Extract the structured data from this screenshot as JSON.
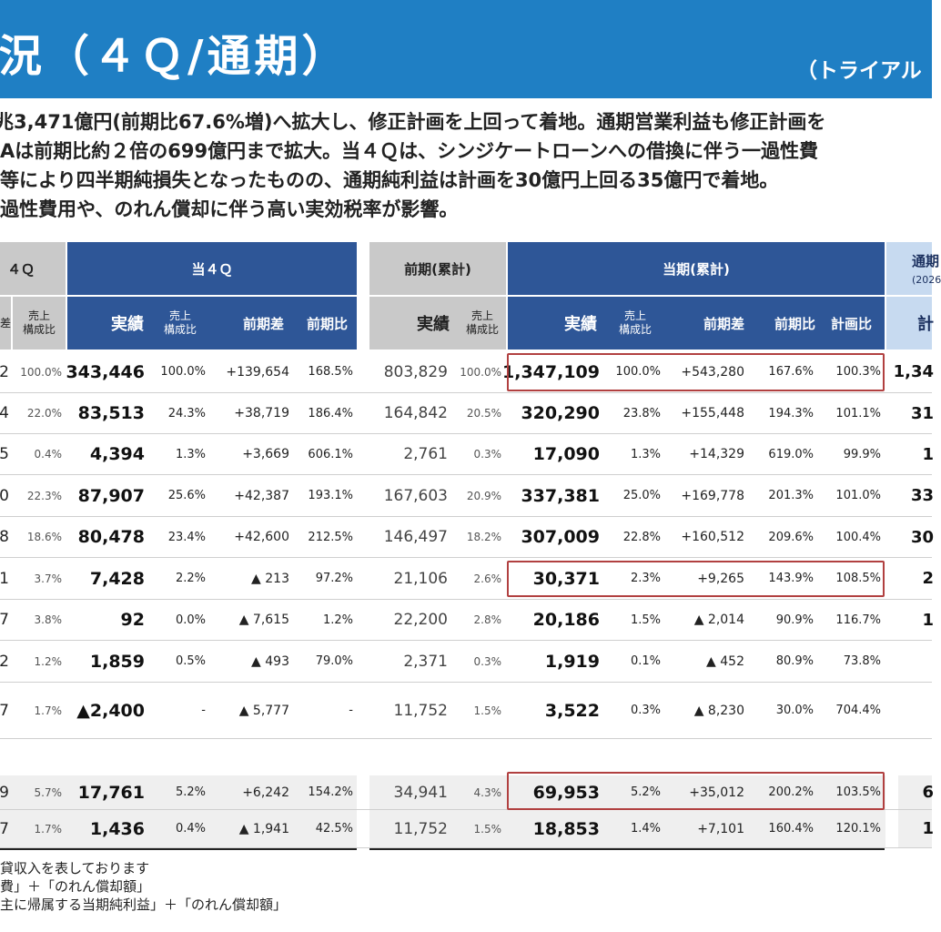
{
  "header": {
    "title": "況（４Ｑ/通期）",
    "subtitle": "（トライアル"
  },
  "summary": [
    "兆3,471億円(前期比67.6%増)へ拡大し、修正計画を上回って着地。通期営業利益も修正計画を",
    "Aは前期比約２倍の699億円まで拡大。当４Ｑは、シンジケートローンへの借換に伴う一過性費",
    "等により四半期純損失となったものの、通期純利益は計画を30億円上回る35億円で着地。",
    "過性費用や、のれん償却に伴う高い実効税率が影響。"
  ],
  "table": {
    "headers": {
      "prev_q_fragment": "４Ｑ",
      "curr_q": "当４Ｑ",
      "prev_cum": "前期(累計)",
      "curr_cum": "当期(累計)",
      "plan_top": "通期",
      "plan_year": "(2026"
    },
    "subheaders": {
      "frag_diff": "差",
      "composition": "売上\n構成比",
      "actual": "実績",
      "yoy_diff": "前期差",
      "yoy_ratio": "前期比",
      "plan_ratio": "計画比",
      "plan_col": "計"
    },
    "rows": [
      {
        "frag": "2",
        "frag_comp": "100.0%",
        "cq": "343,446",
        "cq_comp": "100.0%",
        "cq_diff": "+139,654",
        "cq_ratio": "168.5%",
        "pc": "803,829",
        "pc_comp": "100.0%",
        "cc": "1,347,109",
        "cc_comp": "100.0%",
        "cc_diff": "+543,280",
        "cc_ratio": "167.6%",
        "cc_plan": "100.3%",
        "plan": "1,34"
      },
      {
        "frag": "4",
        "frag_comp": "22.0%",
        "cq": "83,513",
        "cq_comp": "24.3%",
        "cq_diff": "+38,719",
        "cq_ratio": "186.4%",
        "pc": "164,842",
        "pc_comp": "20.5%",
        "cc": "320,290",
        "cc_comp": "23.8%",
        "cc_diff": "+155,448",
        "cc_ratio": "194.3%",
        "cc_plan": "101.1%",
        "plan": "31"
      },
      {
        "frag": "5",
        "frag_comp": "0.4%",
        "cq": "4,394",
        "cq_comp": "1.3%",
        "cq_diff": "+3,669",
        "cq_ratio": "606.1%",
        "pc": "2,761",
        "pc_comp": "0.3%",
        "cc": "17,090",
        "cc_comp": "1.3%",
        "cc_diff": "+14,329",
        "cc_ratio": "619.0%",
        "cc_plan": "99.9%",
        "plan": "1"
      },
      {
        "frag": "0",
        "frag_comp": "22.3%",
        "cq": "87,907",
        "cq_comp": "25.6%",
        "cq_diff": "+42,387",
        "cq_ratio": "193.1%",
        "pc": "167,603",
        "pc_comp": "20.9%",
        "cc": "337,381",
        "cc_comp": "25.0%",
        "cc_diff": "+169,778",
        "cc_ratio": "201.3%",
        "cc_plan": "101.0%",
        "plan": "33"
      },
      {
        "frag": "8",
        "frag_comp": "18.6%",
        "cq": "80,478",
        "cq_comp": "23.4%",
        "cq_diff": "+42,600",
        "cq_ratio": "212.5%",
        "pc": "146,497",
        "pc_comp": "18.2%",
        "cc": "307,009",
        "cc_comp": "22.8%",
        "cc_diff": "+160,512",
        "cc_ratio": "209.6%",
        "cc_plan": "100.4%",
        "plan": "30"
      },
      {
        "frag": "1",
        "frag_comp": "3.7%",
        "cq": "7,428",
        "cq_comp": "2.2%",
        "cq_diff": "▲ 213",
        "cq_ratio": "97.2%",
        "pc": "21,106",
        "pc_comp": "2.6%",
        "cc": "30,371",
        "cc_comp": "2.3%",
        "cc_diff": "+9,265",
        "cc_ratio": "143.9%",
        "cc_plan": "108.5%",
        "plan": "2"
      },
      {
        "frag": "7",
        "frag_comp": "3.8%",
        "cq": "92",
        "cq_comp": "0.0%",
        "cq_diff": "▲ 7,615",
        "cq_ratio": "1.2%",
        "pc": "22,200",
        "pc_comp": "2.8%",
        "cc": "20,186",
        "cc_comp": "1.5%",
        "cc_diff": "▲ 2,014",
        "cc_ratio": "90.9%",
        "cc_plan": "116.7%",
        "plan": "1"
      },
      {
        "frag": "2",
        "frag_comp": "1.2%",
        "cq": "1,859",
        "cq_comp": "0.5%",
        "cq_diff": "▲ 493",
        "cq_ratio": "79.0%",
        "pc": "2,371",
        "pc_comp": "0.3%",
        "cc": "1,919",
        "cc_comp": "0.1%",
        "cc_diff": "▲ 452",
        "cc_ratio": "80.9%",
        "cc_plan": "73.8%",
        "plan": ""
      },
      {
        "frag": "7",
        "frag_comp": "1.7%",
        "cq": "▲2,400",
        "cq_comp": "-",
        "cq_diff": "▲ 5,777",
        "cq_ratio": "-",
        "pc": "11,752",
        "pc_comp": "1.5%",
        "cc": "3,522",
        "cc_comp": "0.3%",
        "cc_diff": "▲ 8,230",
        "cc_ratio": "30.0%",
        "cc_plan": "704.4%",
        "plan": ""
      },
      {
        "frag": "9",
        "frag_comp": "5.7%",
        "cq": "17,761",
        "cq_comp": "5.2%",
        "cq_diff": "+6,242",
        "cq_ratio": "154.2%",
        "pc": "34,941",
        "pc_comp": "4.3%",
        "cc": "69,953",
        "cc_comp": "5.2%",
        "cc_diff": "+35,012",
        "cc_ratio": "200.2%",
        "cc_plan": "103.5%",
        "plan": "6"
      },
      {
        "frag": "7",
        "frag_comp": "1.7%",
        "cq": "1,436",
        "cq_comp": "0.4%",
        "cq_diff": "▲ 1,941",
        "cq_ratio": "42.5%",
        "pc": "11,752",
        "pc_comp": "1.5%",
        "cc": "18,853",
        "cc_comp": "1.4%",
        "cc_diff": "+7,101",
        "cc_ratio": "160.4%",
        "cc_plan": "120.1%",
        "plan": "1"
      }
    ]
  },
  "footnotes": [
    "貸収入を表しております",
    "費」＋「のれん償却額」",
    "主に帰属する当期純利益」＋「のれん償却額」"
  ]
}
